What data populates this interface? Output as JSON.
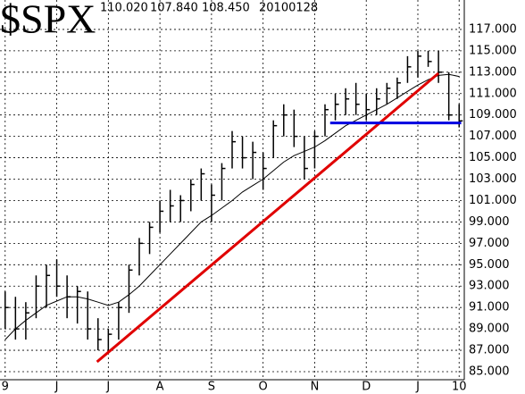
{
  "chart_data": {
    "type": "ohlc",
    "title": "$SPX",
    "header": [
      "110.020",
      "107.840",
      "108.450",
      "20100128"
    ],
    "categories": [
      "9",
      null,
      null,
      null,
      null,
      "J",
      null,
      null,
      null,
      null,
      "J",
      null,
      null,
      null,
      null,
      "A",
      null,
      null,
      null,
      null,
      "S",
      null,
      null,
      null,
      null,
      "O",
      null,
      null,
      null,
      null,
      "N",
      null,
      null,
      null,
      null,
      "D",
      null,
      null,
      null,
      null,
      "J",
      null,
      null,
      null,
      "10"
    ],
    "high": [
      92.5,
      92,
      91.5,
      94,
      95,
      95.5,
      94,
      93,
      92.5,
      90,
      89,
      91.5,
      95,
      97.5,
      99,
      101,
      102,
      101.5,
      103,
      104,
      102.5,
      104.5,
      107.5,
      107,
      106.5,
      105.5,
      108.5,
      110,
      109.5,
      107,
      107.5,
      110,
      111,
      111.5,
      112,
      111,
      111.5,
      112,
      112.5,
      114.5,
      115,
      115,
      115,
      113,
      110.02
    ],
    "low": [
      89,
      88,
      88,
      90,
      91,
      92,
      90,
      89.5,
      88,
      87,
      86.9,
      88,
      90.5,
      94,
      96,
      98,
      99,
      99,
      100,
      101,
      99,
      101,
      104,
      104,
      103,
      102,
      105,
      107,
      106,
      103,
      104,
      107,
      108.5,
      109,
      109,
      108.5,
      109,
      110,
      110.5,
      112,
      112.5,
      113.5,
      112,
      108.5,
      107.84
    ],
    "close": [
      91,
      89,
      90.5,
      93,
      94,
      93,
      92,
      92.5,
      89,
      88,
      88.5,
      91,
      94.5,
      97,
      98.5,
      100,
      100.5,
      101,
      102.5,
      103.5,
      101.5,
      104,
      106.5,
      105,
      105.5,
      104,
      108,
      109,
      107,
      104,
      107,
      109.5,
      110,
      110.5,
      110,
      109.5,
      110.5,
      111.5,
      112,
      113.5,
      114.5,
      114,
      113,
      109,
      108.45
    ],
    "moving_average": [
      88,
      89,
      89.8,
      90.5,
      91.2,
      91.6,
      92,
      92,
      91.8,
      91.5,
      91.2,
      91.5,
      92.2,
      93,
      94,
      95,
      96,
      97,
      98,
      99,
      99.6,
      100.3,
      101,
      101.8,
      102.4,
      103,
      103.8,
      104.6,
      105.2,
      105.6,
      106,
      106.6,
      107.3,
      108,
      108.5,
      109,
      109.5,
      110,
      110.6,
      111.2,
      111.8,
      112.3,
      112.7,
      112.8,
      112.6
    ],
    "color": "#000000",
    "lines": [
      {
        "color": "#e00000",
        "x": [
          8.9,
          42
        ],
        "values": [
          85.92,
          112.9
        ]
      },
      {
        "color": "#0000e0",
        "x": [
          31.5,
          44.2
        ],
        "values": [
          108.25,
          108.25
        ]
      }
    ],
    "ylim": [
      84.25,
      119.75
    ],
    "yticks": [
      {
        "value": 85,
        "label": "85.000"
      },
      {
        "value": 87,
        "label": "87.000"
      },
      {
        "value": 89,
        "label": "89.000"
      },
      {
        "value": 91,
        "label": "91.000"
      },
      {
        "value": 93,
        "label": "93.000"
      },
      {
        "value": 95,
        "label": "95.000"
      },
      {
        "value": 97,
        "label": "97.000"
      },
      {
        "value": 99,
        "label": "99.000"
      },
      {
        "value": 101,
        "label": "101.000"
      },
      {
        "value": 103,
        "label": "103.000"
      },
      {
        "value": 105,
        "label": "105.000"
      },
      {
        "value": 107,
        "label": "107.000"
      },
      {
        "value": 109,
        "label": "109.000"
      },
      {
        "value": 111,
        "label": "111.000"
      },
      {
        "value": 113,
        "label": "113.000"
      },
      {
        "value": 115,
        "label": "115.000"
      },
      {
        "value": 117,
        "label": "117.000"
      }
    ],
    "grid": true
  }
}
